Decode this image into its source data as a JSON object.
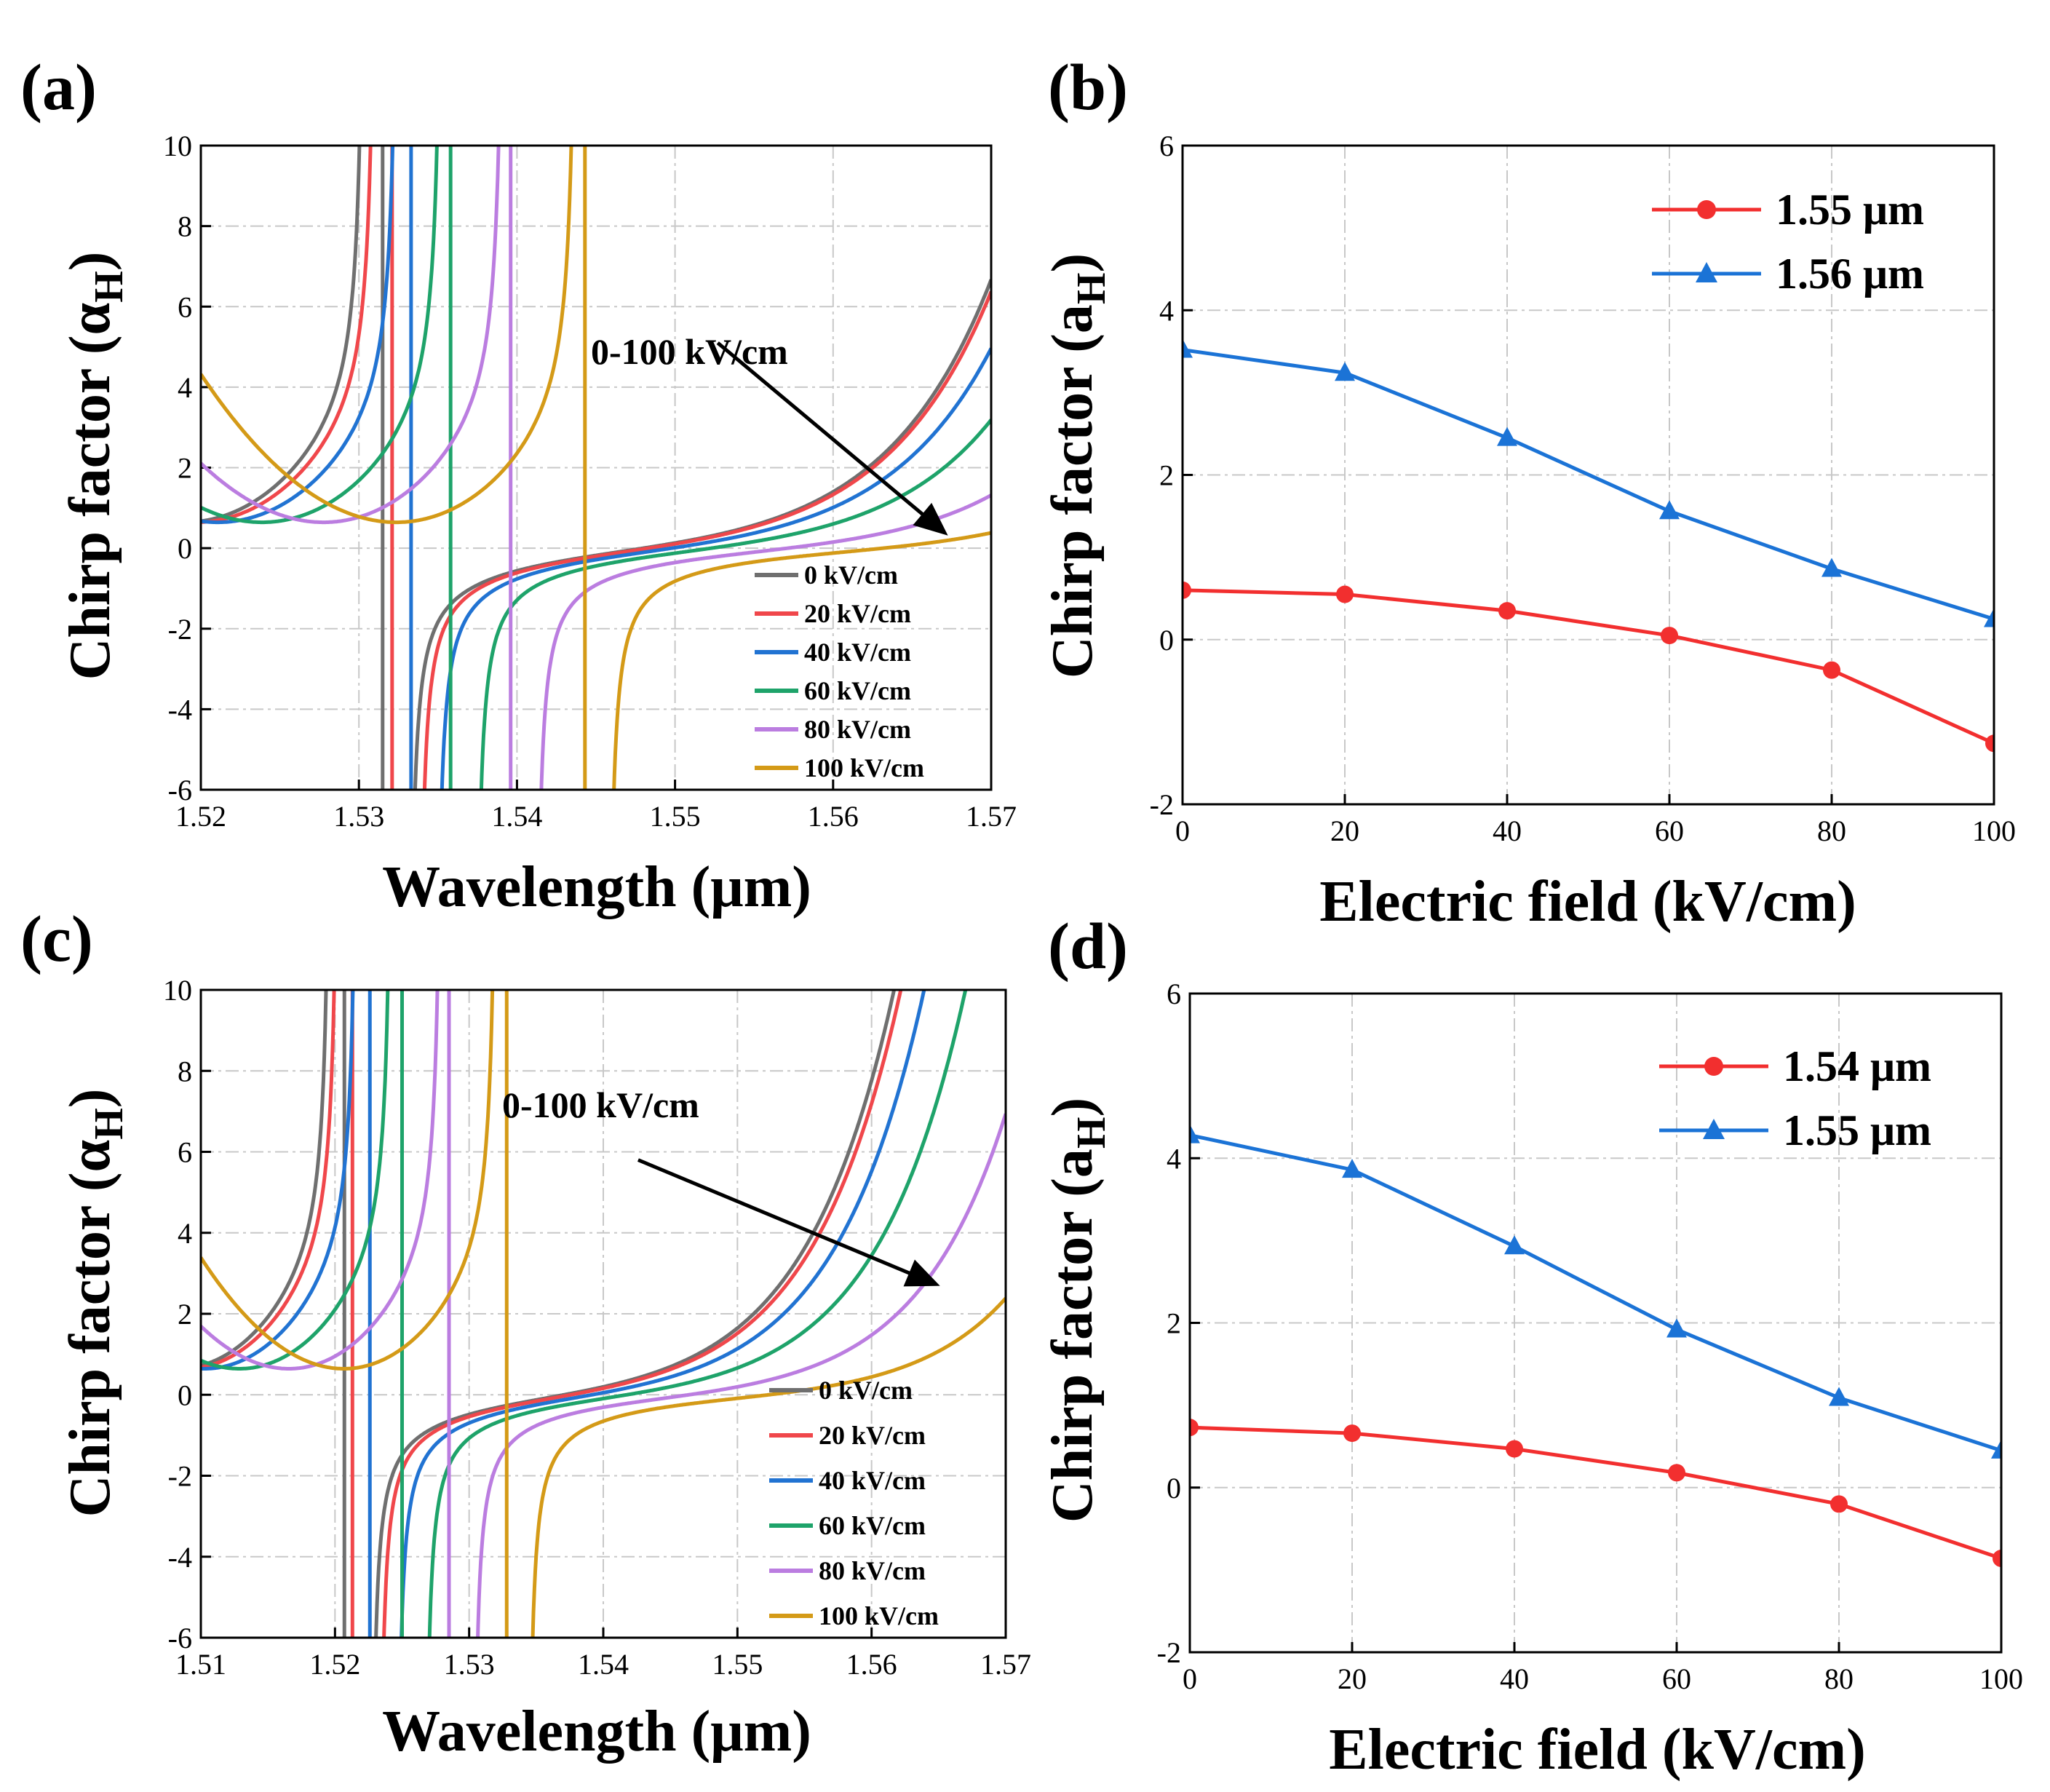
{
  "chart_data": [
    {
      "panel": "(a)",
      "type": "line",
      "xlabel": "Wavelength (μm)",
      "ylabel": "Chirp factor (α",
      "ylabel_sub": "H",
      "ylabel_close": ")",
      "xlim": [
        1.52,
        1.57
      ],
      "ylim": [
        -6,
        10
      ],
      "xticks": [
        "1.52",
        "1.53",
        "1.54",
        "1.55",
        "1.56",
        "1.57"
      ],
      "yticks": [
        "-6",
        "-4",
        "-2",
        "0",
        "2",
        "4",
        "6",
        "8",
        "10"
      ],
      "annotation": "0-100 kV/cm",
      "annotation_arrow": {
        "from": [
          1.5527,
          5.1
        ],
        "to": [
          1.5667,
          0.5
        ]
      },
      "series": [
        {
          "name": "0 kV/cm",
          "color": "#6f6f6f",
          "pole": 1.5315,
          "p1": 1.5305,
          "p2": 1.5331,
          "z": 1.5445,
          "a": 0.14,
          "min": 0.75
        },
        {
          "name": "20 kV/cm",
          "color": "#f0474b",
          "pole": 1.5321,
          "p1": 1.5312,
          "p2": 1.5337,
          "z": 1.5448,
          "a": 0.14,
          "min": 0.75
        },
        {
          "name": "40 kV/cm",
          "color": "#2173d2",
          "pole": 1.5333,
          "p1": 1.5326,
          "p2": 1.5348,
          "z": 1.5462,
          "a": 0.135,
          "min": 0.75
        },
        {
          "name": "60 kV/cm",
          "color": "#1ea36a",
          "pole": 1.5358,
          "p1": 1.5354,
          "p2": 1.5373,
          "z": 1.5483,
          "a": 0.12,
          "min": 0.75
        },
        {
          "name": "80 kV/cm",
          "color": "#bb7de0",
          "pole": 1.5396,
          "p1": 1.5393,
          "p2": 1.5411,
          "z": 1.5527,
          "a": 0.1,
          "min": 0.75
        },
        {
          "name": "100 kV/cm",
          "color": "#d49a17",
          "pole": 1.5443,
          "p1": 1.5439,
          "p2": 1.5457,
          "z": 1.5582,
          "a": 0.08,
          "min": 0.75
        }
      ]
    },
    {
      "panel": "(b)",
      "type": "line",
      "xlabel": "Electric field (kV/cm)",
      "ylabel": "Chirp factor (a",
      "ylabel_sub": "H",
      "ylabel_close": ")",
      "xlim": [
        0,
        100
      ],
      "ylim": [
        -2,
        6
      ],
      "xticks": [
        "0",
        "20",
        "40",
        "60",
        "80",
        "100"
      ],
      "yticks": [
        "-2",
        "0",
        "2",
        "4",
        "6"
      ],
      "x": [
        0,
        20,
        40,
        60,
        80,
        100
      ],
      "series": [
        {
          "name": "1.55 μm",
          "color": "#f22f2f",
          "marker": "circle",
          "values": [
            0.6,
            0.55,
            0.35,
            0.05,
            -0.37,
            -1.26
          ]
        },
        {
          "name": "1.56 μm",
          "color": "#1b73d6",
          "marker": "triangle",
          "values": [
            3.52,
            3.24,
            2.45,
            1.56,
            0.86,
            0.25
          ]
        }
      ]
    },
    {
      "panel": "(c)",
      "type": "line",
      "xlabel": "Wavelength (μm)",
      "ylabel": "Chirp factor (α",
      "ylabel_sub": "H",
      "ylabel_close": ")",
      "xlim": [
        1.51,
        1.57
      ],
      "ylim": [
        -6,
        10
      ],
      "xticks": [
        "1.51",
        "1.52",
        "1.53",
        "1.54",
        "1.55",
        "1.56",
        "1.57"
      ],
      "yticks": [
        "-6",
        "-4",
        "-2",
        "0",
        "2",
        "4",
        "6",
        "8",
        "10"
      ],
      "annotation": "0-100 kV/cm",
      "annotation_arrow": {
        "from": [
          1.5426,
          5.8
        ],
        "to": [
          1.5643,
          2.8
        ]
      },
      "series": [
        {
          "name": "0 kV/cm",
          "color": "#6f6f6f",
          "pole": 1.5207,
          "p1": 1.5198,
          "p2": 1.5226,
          "z": 1.5335,
          "a": 0.14,
          "min": 0.75
        },
        {
          "name": "20 kV/cm",
          "color": "#f0474b",
          "pole": 1.5213,
          "p1": 1.5204,
          "p2": 1.5232,
          "z": 1.534,
          "a": 0.14,
          "min": 0.75
        },
        {
          "name": "40 kV/cm",
          "color": "#2173d2",
          "pole": 1.5226,
          "p1": 1.5218,
          "p2": 1.5245,
          "z": 1.5355,
          "a": 0.135,
          "min": 0.75
        },
        {
          "name": "60 kV/cm",
          "color": "#1ea36a",
          "pole": 1.525,
          "p1": 1.5244,
          "p2": 1.5266,
          "z": 1.5378,
          "a": 0.12,
          "min": 0.75
        },
        {
          "name": "80 kV/cm",
          "color": "#bb7de0",
          "pole": 1.5285,
          "p1": 1.5281,
          "p2": 1.5302,
          "z": 1.542,
          "a": 0.1,
          "min": 0.75
        },
        {
          "name": "100 kV/cm",
          "color": "#d49a17",
          "pole": 1.5328,
          "p1": 1.5322,
          "p2": 1.5343,
          "z": 1.5475,
          "a": 0.08,
          "min": 0.75
        }
      ]
    },
    {
      "panel": "(d)",
      "type": "line",
      "xlabel": "Electric field (kV/cm)",
      "ylabel": "Chirp factor (a",
      "ylabel_sub": "H",
      "ylabel_close": ")",
      "xlim": [
        0,
        100
      ],
      "ylim": [
        -2,
        6
      ],
      "xticks": [
        "0",
        "20",
        "40",
        "60",
        "80",
        "100"
      ],
      "yticks": [
        "-2",
        "0",
        "2",
        "4",
        "6"
      ],
      "x": [
        0,
        20,
        40,
        60,
        80,
        100
      ],
      "series": [
        {
          "name": "1.54 μm",
          "color": "#f22f2f",
          "marker": "circle",
          "values": [
            0.73,
            0.66,
            0.47,
            0.18,
            -0.2,
            -0.86
          ]
        },
        {
          "name": "1.55 μm",
          "color": "#1b73d6",
          "marker": "triangle",
          "values": [
            4.28,
            3.86,
            2.93,
            1.92,
            1.09,
            0.45
          ]
        }
      ]
    }
  ]
}
